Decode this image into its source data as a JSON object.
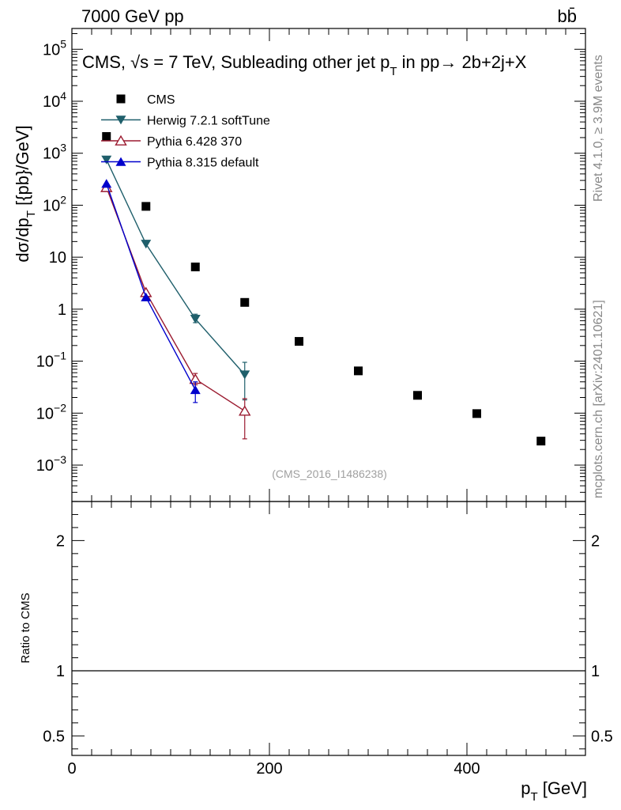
{
  "chart_data": {
    "type": "scatter",
    "header_left": "7000 GeV pp",
    "header_right": "bb̄",
    "title": "CMS, √s = 7 TeV, Subleading other jet p",
    "title_sub": "T",
    "title_tail": " in pp→  2b+2j+X",
    "xlabel": "p",
    "xlabel_sub": "T",
    "xlabel_unit": " [GeV]",
    "ylabel": "dσ/dp",
    "ylabel_sub": "T",
    "ylabel_unit": "  [{pb}/GeV]",
    "ratio_ylabel": "Ratio to CMS",
    "side_text_top": "Rivet 4.1.0, ≥ 3.9M events",
    "side_text_bottom": "mcplots.cern.ch [arXiv:2401.10621]",
    "watermark": "(CMS_2016_I1486238)",
    "xlim": [
      0,
      520
    ],
    "ylim_log10": [
      -3.7,
      5.4
    ],
    "ratio_ylim": [
      0.35,
      2.3
    ],
    "x_ticks": [
      {
        "value": 0,
        "label": "0"
      },
      {
        "value": 200,
        "label": "200"
      },
      {
        "value": 400,
        "label": "400"
      }
    ],
    "y_ticks": [
      {
        "exp": -3,
        "base": "10",
        "sup": "−3"
      },
      {
        "exp": -2,
        "base": "10",
        "sup": "−2"
      },
      {
        "exp": -1,
        "base": "10",
        "sup": "−1"
      },
      {
        "exp": 0,
        "base": "1",
        "sup": ""
      },
      {
        "exp": 1,
        "base": "10",
        "sup": ""
      },
      {
        "exp": 2,
        "base": "10",
        "sup": "2"
      },
      {
        "exp": 3,
        "base": "10",
        "sup": "3"
      },
      {
        "exp": 4,
        "base": "10",
        "sup": "4"
      },
      {
        "exp": 5,
        "base": "10",
        "sup": "5"
      }
    ],
    "ratio_ticks": [
      {
        "value": 0.5,
        "label": "0.5"
      },
      {
        "value": 1,
        "label": "1"
      },
      {
        "value": 2,
        "label": "2"
      }
    ],
    "series": [
      {
        "name": "CMS",
        "color": "#000000",
        "marker": "square",
        "line": false,
        "x": [
          35,
          75,
          125,
          175,
          230,
          290,
          350,
          410,
          475
        ],
        "y": [
          2100,
          95,
          6.5,
          1.35,
          0.24,
          0.065,
          0.022,
          0.0098,
          0.0029
        ],
        "err": []
      },
      {
        "name": "Herwig 7.2.1 softTune",
        "color": "#1f5f6b",
        "marker": "triangle-down",
        "line": true,
        "x": [
          35,
          75,
          125,
          175
        ],
        "y": [
          750,
          18,
          0.65,
          0.055
        ],
        "err": [
          [
            0,
            0
          ],
          [
            0,
            0
          ],
          [
            0.55,
            0.8
          ],
          [
            0.018,
            0.095
          ]
        ]
      },
      {
        "name": "Pythia 6.428 370",
        "color": "#9b1b30",
        "marker": "triangle-up-open",
        "line": true,
        "x": [
          35,
          75,
          125,
          175
        ],
        "y": [
          220,
          2.1,
          0.045,
          0.011
        ],
        "err": [
          [
            0,
            0
          ],
          [
            0,
            0
          ],
          [
            0.035,
            0.058
          ],
          [
            0.0032,
            0.019
          ]
        ]
      },
      {
        "name": "Pythia 8.315 default",
        "color": "#0000cc",
        "marker": "triangle-up",
        "line": true,
        "x": [
          35,
          75,
          125
        ],
        "y": [
          260,
          1.7,
          0.028
        ],
        "err": [
          [
            0,
            0
          ],
          [
            0,
            0
          ],
          [
            0.016,
            0.04
          ]
        ]
      }
    ]
  }
}
